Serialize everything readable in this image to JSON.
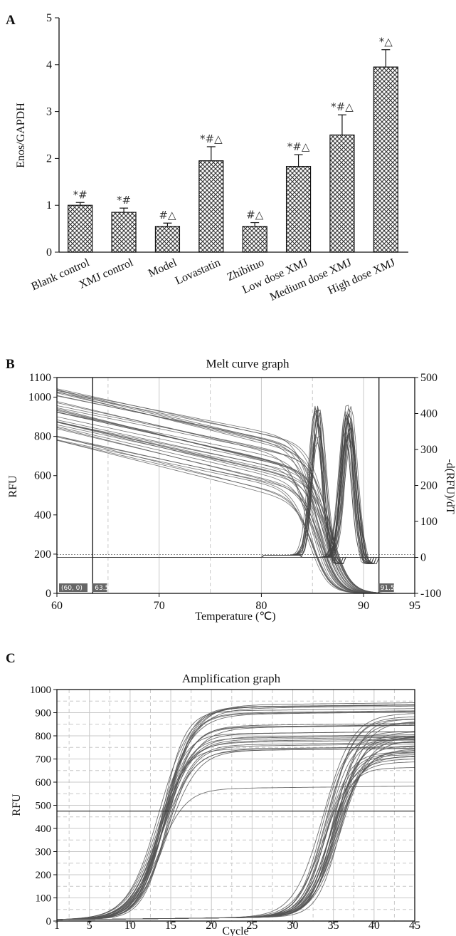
{
  "chart_data": [
    {
      "panel": "A",
      "type": "bar",
      "title": "",
      "ylabel": "Enos/GAPDH",
      "xlabel": "",
      "ylim": [
        0,
        5
      ],
      "yticks": [
        "0",
        "1",
        "2",
        "3",
        "4",
        "5"
      ],
      "categories": [
        "Blank control",
        "XMJ control",
        "Model",
        "Lovastatin",
        "Zhibituo",
        "Low dose XMJ",
        "Medium dose XMJ",
        "High dose XMJ"
      ],
      "values": [
        1.0,
        0.85,
        0.55,
        1.95,
        0.55,
        1.83,
        2.5,
        3.95
      ],
      "errors": [
        0.06,
        0.09,
        0.07,
        0.3,
        0.08,
        0.25,
        0.43,
        0.37
      ],
      "annotations": [
        "*#",
        "*#",
        "#△",
        "*#△",
        "#△",
        "*#△",
        "*#△",
        "*△"
      ],
      "colors": {
        "bar_fill": "#ffffff",
        "bar_pattern": "#333333"
      }
    },
    {
      "panel": "B",
      "type": "line",
      "title": "Melt curve graph",
      "xlabel": "Temperature (℃)",
      "ylabel": "RFU",
      "ylabel_right": "-d(RFU)/dT",
      "xlim": [
        60,
        95
      ],
      "ylim": [
        0,
        1100
      ],
      "ylim_right": [
        -100,
        500
      ],
      "xticks": [
        "60",
        "70",
        "80",
        "90",
        "95"
      ],
      "yticks": [
        "0",
        "200",
        "400",
        "600",
        "800",
        "1000",
        "1100"
      ],
      "yticks_right": [
        "-100",
        "0",
        "100",
        "200",
        "300",
        "400",
        "500"
      ],
      "markers": [
        "(60, 0)",
        "63.5",
        "91.5"
      ],
      "threshold_right": 0,
      "grid": true
    },
    {
      "panel": "C",
      "type": "line",
      "title": "Amplification graph",
      "xlabel": "Cycle",
      "ylabel": "RFU",
      "xlim": [
        1,
        45
      ],
      "ylim": [
        0,
        1000
      ],
      "xticks": [
        "1",
        "5",
        "10",
        "15",
        "20",
        "25",
        "30",
        "35",
        "40",
        "45"
      ],
      "yticks": [
        "0",
        "100",
        "200",
        "300",
        "400",
        "500",
        "600",
        "700",
        "800",
        "900",
        "1000"
      ],
      "threshold": 475,
      "grid": true
    }
  ]
}
